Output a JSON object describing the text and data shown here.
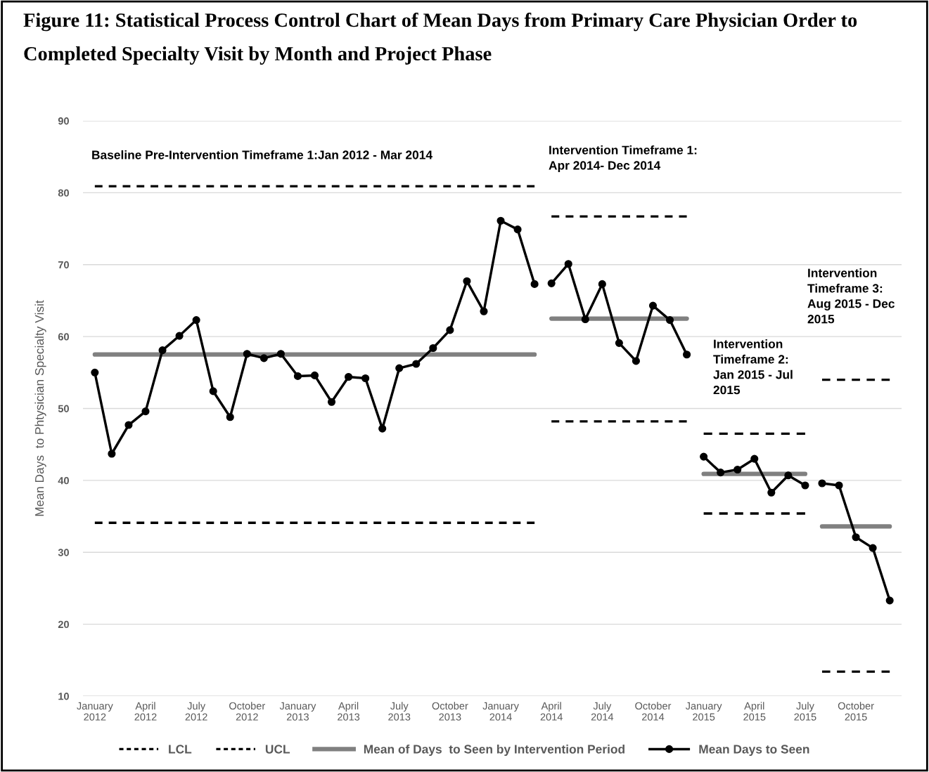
{
  "chart_data": {
    "type": "line",
    "title": "Figure 11: Statistical Process Control Chart of Mean Days from Primary Care Physician Order to Completed Specialty Visit by Month and Project Phase",
    "ylabel": "Mean Days  to Phtysician Specialty Visit",
    "categories": [
      "January\n2012",
      null,
      null,
      "April\n2012",
      null,
      null,
      "July\n2012",
      null,
      null,
      "October\n2012",
      null,
      null,
      "January\n2013",
      null,
      null,
      "April\n2013",
      null,
      null,
      "July\n2013",
      null,
      null,
      "October\n2013",
      null,
      null,
      "January\n2014",
      null,
      null,
      "April\n2014",
      null,
      null,
      "July\n2014",
      null,
      null,
      "October\n2014",
      null,
      null,
      "January\n2015",
      null,
      null,
      "April\n2015",
      null,
      null,
      "July\n2015",
      null,
      null,
      "October\n2015",
      null,
      null
    ],
    "ylim": [
      10,
      90
    ],
    "yticks": [
      10,
      20,
      30,
      40,
      50,
      60,
      70,
      80,
      90
    ],
    "grid": "y",
    "legend": "bottom",
    "annotations": [
      "Baseline Pre-Intervention Timeframe 1:Jan 2012 - Mar 2014",
      "Intervention Timeframe 1:\nApr 2014- Dec 2014",
      "Intervention\nTimeframe 2:\nJan 2015 - Jul\n2015",
      "Intervention\nTimeframe 3:\nAug 2015 - Dec\n2015"
    ],
    "series": [
      {
        "name": "LCL",
        "color": "#000000",
        "line_style": "dashed",
        "values": [
          34.1,
          34.1,
          34.1,
          34.1,
          34.1,
          34.1,
          34.1,
          34.1,
          34.1,
          34.1,
          34.1,
          34.1,
          34.1,
          34.1,
          34.1,
          34.1,
          34.1,
          34.1,
          34.1,
          34.1,
          34.1,
          34.1,
          34.1,
          34.1,
          34.1,
          34.1,
          34.1,
          null,
          null,
          null,
          null,
          null,
          null,
          null,
          null,
          null,
          null,
          null,
          null,
          null,
          null,
          null,
          null,
          null,
          null,
          null,
          null,
          null
        ]
      },
      {
        "color": "#000000",
        "line_style": "dashed",
        "values": [
          null,
          null,
          null,
          null,
          null,
          null,
          null,
          null,
          null,
          null,
          null,
          null,
          null,
          null,
          null,
          null,
          null,
          null,
          null,
          null,
          null,
          null,
          null,
          null,
          null,
          null,
          null,
          48.2,
          48.2,
          48.2,
          48.2,
          48.2,
          48.2,
          48.2,
          48.2,
          48.2,
          null,
          null,
          null,
          null,
          null,
          null,
          null,
          null,
          null,
          null,
          null,
          null
        ]
      },
      {
        "color": "#000000",
        "line_style": "dashed",
        "values": [
          null,
          null,
          null,
          null,
          null,
          null,
          null,
          null,
          null,
          null,
          null,
          null,
          null,
          null,
          null,
          null,
          null,
          null,
          null,
          null,
          null,
          null,
          null,
          null,
          null,
          null,
          null,
          null,
          null,
          null,
          null,
          null,
          null,
          null,
          null,
          null,
          35.4,
          35.4,
          35.4,
          35.4,
          35.4,
          35.4,
          35.4,
          null,
          null,
          null,
          null,
          null
        ]
      },
      {
        "color": "#000000",
        "line_style": "dashed",
        "values": [
          null,
          null,
          null,
          null,
          null,
          null,
          null,
          null,
          null,
          null,
          null,
          null,
          null,
          null,
          null,
          null,
          null,
          null,
          null,
          null,
          null,
          null,
          null,
          null,
          null,
          null,
          null,
          null,
          null,
          null,
          null,
          null,
          null,
          null,
          null,
          null,
          null,
          null,
          null,
          null,
          null,
          null,
          null,
          13.4,
          13.4,
          13.4,
          13.4,
          13.4
        ]
      },
      {
        "name": "UCL",
        "color": "#000000",
        "line_style": "dashed",
        "values": [
          80.9,
          80.9,
          80.9,
          80.9,
          80.9,
          80.9,
          80.9,
          80.9,
          80.9,
          80.9,
          80.9,
          80.9,
          80.9,
          80.9,
          80.9,
          80.9,
          80.9,
          80.9,
          80.9,
          80.9,
          80.9,
          80.9,
          80.9,
          80.9,
          80.9,
          80.9,
          80.9,
          null,
          null,
          null,
          null,
          null,
          null,
          null,
          null,
          null,
          null,
          null,
          null,
          null,
          null,
          null,
          null,
          null,
          null,
          null,
          null,
          null
        ]
      },
      {
        "color": "#000000",
        "line_style": "dashed",
        "values": [
          null,
          null,
          null,
          null,
          null,
          null,
          null,
          null,
          null,
          null,
          null,
          null,
          null,
          null,
          null,
          null,
          null,
          null,
          null,
          null,
          null,
          null,
          null,
          null,
          null,
          null,
          null,
          76.7,
          76.7,
          76.7,
          76.7,
          76.7,
          76.7,
          76.7,
          76.7,
          76.7,
          null,
          null,
          null,
          null,
          null,
          null,
          null,
          null,
          null,
          null,
          null,
          null
        ]
      },
      {
        "color": "#000000",
        "line_style": "dashed",
        "values": [
          null,
          null,
          null,
          null,
          null,
          null,
          null,
          null,
          null,
          null,
          null,
          null,
          null,
          null,
          null,
          null,
          null,
          null,
          null,
          null,
          null,
          null,
          null,
          null,
          null,
          null,
          null,
          null,
          null,
          null,
          null,
          null,
          null,
          null,
          null,
          null,
          46.5,
          46.5,
          46.5,
          46.5,
          46.5,
          46.5,
          46.5,
          null,
          null,
          null,
          null,
          null
        ]
      },
      {
        "color": "#000000",
        "line_style": "dashed",
        "values": [
          null,
          null,
          null,
          null,
          null,
          null,
          null,
          null,
          null,
          null,
          null,
          null,
          null,
          null,
          null,
          null,
          null,
          null,
          null,
          null,
          null,
          null,
          null,
          null,
          null,
          null,
          null,
          null,
          null,
          null,
          null,
          null,
          null,
          null,
          null,
          null,
          null,
          null,
          null,
          null,
          null,
          null,
          null,
          54.0,
          54.0,
          54.0,
          54.0,
          54.0
        ]
      },
      {
        "name": "Mean of Days  to Seen by Intervention Period",
        "color": "#808080",
        "line_style": "solid",
        "values": [
          57.5,
          57.5,
          57.5,
          57.5,
          57.5,
          57.5,
          57.5,
          57.5,
          57.5,
          57.5,
          57.5,
          57.5,
          57.5,
          57.5,
          57.5,
          57.5,
          57.5,
          57.5,
          57.5,
          57.5,
          57.5,
          57.5,
          57.5,
          57.5,
          57.5,
          57.5,
          57.5,
          null,
          null,
          null,
          null,
          null,
          null,
          null,
          null,
          null,
          null,
          null,
          null,
          null,
          null,
          null,
          null,
          null,
          null,
          null,
          null,
          null
        ]
      },
      {
        "color": "#808080",
        "line_style": "solid",
        "values": [
          null,
          null,
          null,
          null,
          null,
          null,
          null,
          null,
          null,
          null,
          null,
          null,
          null,
          null,
          null,
          null,
          null,
          null,
          null,
          null,
          null,
          null,
          null,
          null,
          null,
          null,
          null,
          62.5,
          62.5,
          62.5,
          62.5,
          62.5,
          62.5,
          62.5,
          62.5,
          62.5,
          null,
          null,
          null,
          null,
          null,
          null,
          null,
          null,
          null,
          null,
          null,
          null
        ]
      },
      {
        "color": "#808080",
        "line_style": "solid",
        "values": [
          null,
          null,
          null,
          null,
          null,
          null,
          null,
          null,
          null,
          null,
          null,
          null,
          null,
          null,
          null,
          null,
          null,
          null,
          null,
          null,
          null,
          null,
          null,
          null,
          null,
          null,
          null,
          null,
          null,
          null,
          null,
          null,
          null,
          null,
          null,
          null,
          40.9,
          40.9,
          40.9,
          40.9,
          40.9,
          40.9,
          40.9,
          null,
          null,
          null,
          null,
          null
        ]
      },
      {
        "color": "#808080",
        "line_style": "solid",
        "values": [
          null,
          null,
          null,
          null,
          null,
          null,
          null,
          null,
          null,
          null,
          null,
          null,
          null,
          null,
          null,
          null,
          null,
          null,
          null,
          null,
          null,
          null,
          null,
          null,
          null,
          null,
          null,
          null,
          null,
          null,
          null,
          null,
          null,
          null,
          null,
          null,
          null,
          null,
          null,
          null,
          null,
          null,
          null,
          33.6,
          33.6,
          33.6,
          33.6,
          33.6
        ]
      },
      {
        "name": "Mean Days to Seen",
        "color": "#000000",
        "line_style": "solid",
        "marker": "circle",
        "values": [
          55.0,
          43.7,
          47.7,
          49.6,
          58.1,
          60.1,
          62.3,
          52.4,
          48.8,
          57.6,
          57.0,
          57.6,
          54.5,
          54.6,
          50.9,
          54.4,
          54.2,
          47.2,
          55.6,
          56.2,
          58.4,
          60.9,
          67.7,
          63.5,
          76.1,
          74.9,
          67.3,
          null,
          null,
          null,
          null,
          null,
          null,
          null,
          null,
          null,
          null,
          null,
          null,
          null,
          null,
          null,
          null,
          null,
          null,
          null,
          null,
          null
        ]
      },
      {
        "color": "#000000",
        "line_style": "solid",
        "marker": "circle",
        "values": [
          null,
          null,
          null,
          null,
          null,
          null,
          null,
          null,
          null,
          null,
          null,
          null,
          null,
          null,
          null,
          null,
          null,
          null,
          null,
          null,
          null,
          null,
          null,
          null,
          null,
          null,
          null,
          67.4,
          70.1,
          62.4,
          67.3,
          59.1,
          56.6,
          64.3,
          62.3,
          57.5,
          null,
          null,
          null,
          null,
          null,
          null,
          null,
          null,
          null,
          null,
          null,
          null
        ]
      },
      {
        "color": "#000000",
        "line_style": "solid",
        "marker": "circle",
        "values": [
          null,
          null,
          null,
          null,
          null,
          null,
          null,
          null,
          null,
          null,
          null,
          null,
          null,
          null,
          null,
          null,
          null,
          null,
          null,
          null,
          null,
          null,
          null,
          null,
          null,
          null,
          null,
          null,
          null,
          null,
          null,
          null,
          null,
          null,
          null,
          null,
          43.3,
          41.1,
          41.5,
          43.0,
          38.3,
          40.7,
          39.3,
          null,
          null,
          null,
          null,
          null
        ]
      },
      {
        "color": "#000000",
        "line_style": "solid",
        "marker": "circle",
        "values": [
          null,
          null,
          null,
          null,
          null,
          null,
          null,
          null,
          null,
          null,
          null,
          null,
          null,
          null,
          null,
          null,
          null,
          null,
          null,
          null,
          null,
          null,
          null,
          null,
          null,
          null,
          null,
          null,
          null,
          null,
          null,
          null,
          null,
          null,
          null,
          null,
          null,
          null,
          null,
          null,
          null,
          null,
          null,
          39.6,
          39.3,
          32.1,
          30.6,
          23.3
        ]
      }
    ]
  }
}
